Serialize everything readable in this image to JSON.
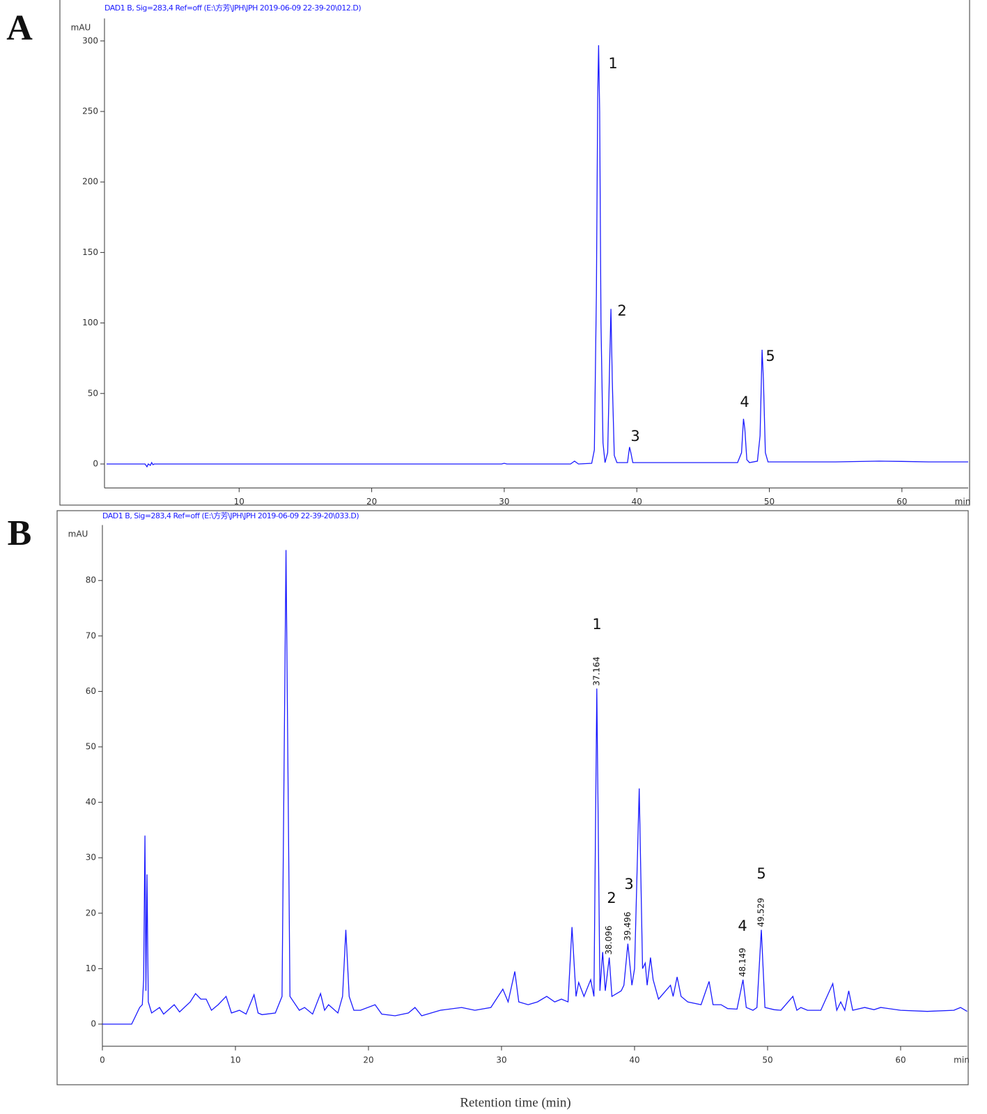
{
  "chart_data": [
    {
      "type": "line",
      "label": "A",
      "title": "DAD1 B, Sig=283,4 Ref=off (E:\\方芳\\JPH\\JPH 2019-06-09 22-39-20\\012.D)",
      "y_unit": "mAU",
      "x_unit": "min",
      "color": "#1a1aff",
      "xlim": [
        0,
        65
      ],
      "ylim": [
        -17,
        312
      ],
      "xticks": [
        10,
        20,
        30,
        40,
        50,
        60
      ],
      "yticks": [
        0,
        50,
        100,
        150,
        200,
        250,
        300
      ],
      "x": [
        0,
        2.9,
        3.05,
        3.15,
        3.3,
        3.4,
        3.5,
        3.6,
        10,
        20,
        29.8,
        30,
        30.2,
        35,
        35.3,
        35.6,
        36.6,
        36.8,
        36.95,
        37.05,
        37.12,
        37.2,
        37.3,
        37.45,
        37.6,
        37.8,
        37.95,
        38.05,
        38.15,
        38.3,
        38.5,
        39.3,
        39.45,
        39.55,
        39.7,
        47.6,
        47.9,
        48.05,
        48.15,
        48.3,
        48.5,
        49.1,
        49.3,
        49.45,
        49.55,
        49.7,
        49.9,
        55,
        58.3,
        60,
        62,
        65
      ],
      "values": [
        0,
        0,
        -2,
        0,
        -1,
        1,
        -0.5,
        0,
        0,
        0,
        0,
        0.5,
        0,
        0,
        2,
        0,
        0.5,
        10,
        120,
        260,
        297,
        250,
        100,
        15,
        1,
        8,
        70,
        110,
        60,
        6,
        1,
        1,
        12,
        8,
        1,
        1,
        8,
        32,
        25,
        3,
        1,
        2,
        20,
        81,
        60,
        8,
        1.5,
        1.5,
        2,
        1.8,
        1.5,
        1.5
      ],
      "annotations": [
        "1",
        "2",
        "3",
        "4",
        "5"
      ]
    },
    {
      "type": "line",
      "label": "B",
      "title": "DAD1 B, Sig=283,4 Ref=off (E:\\方芳\\JPH\\JPH 2019-06-09 22-39-20\\033.D)",
      "y_unit": "mAU",
      "x_unit": "min",
      "color": "#1a1aff",
      "xlim": [
        0,
        65
      ],
      "ylim": [
        -4,
        89
      ],
      "xticks": [
        0,
        10,
        20,
        30,
        40,
        50,
        60
      ],
      "yticks": [
        0,
        10,
        20,
        30,
        40,
        50,
        60,
        70,
        80
      ],
      "xlabel": "Retention time (min)",
      "x": [
        0,
        2.2,
        2.5,
        2.8,
        3.0,
        3.1,
        3.2,
        3.27,
        3.35,
        3.45,
        3.7,
        4.3,
        4.6,
        5.4,
        5.8,
        6.6,
        7.0,
        7.4,
        7.8,
        8.2,
        8.7,
        9.3,
        9.7,
        10.3,
        10.8,
        11.4,
        11.7,
        12.0,
        13.0,
        13.5,
        13.8,
        14.1,
        14.8,
        15.2,
        15.8,
        16.4,
        16.7,
        17.0,
        17.7,
        18.05,
        18.3,
        18.55,
        18.9,
        19.4,
        20.5,
        21.0,
        22.0,
        23.0,
        23.5,
        24.0,
        25.4,
        27.0,
        28.0,
        29.2,
        30.1,
        30.5,
        31.0,
        31.3,
        32.0,
        32.7,
        33.4,
        34.0,
        34.5,
        35.0,
        35.3,
        35.6,
        35.8,
        36.2,
        36.7,
        36.95,
        37.16,
        37.4,
        37.6,
        37.8,
        38.1,
        38.3,
        39.0,
        39.2,
        39.5,
        39.8,
        40.0,
        40.35,
        40.6,
        40.8,
        40.95,
        41.2,
        41.4,
        41.8,
        42.7,
        42.9,
        43.2,
        43.5,
        44.0,
        45.0,
        45.6,
        45.9,
        46.5,
        47.0,
        47.7,
        48.15,
        48.4,
        48.9,
        49.2,
        49.53,
        49.8,
        50.5,
        51.0,
        51.9,
        52.2,
        52.5,
        53.0,
        54.0,
        54.9,
        55.2,
        55.5,
        55.8,
        56.1,
        56.4,
        57.3,
        58.0,
        58.5,
        60.0,
        62.0,
        64.0,
        64.5,
        65.0
      ],
      "values": [
        0,
        0,
        1.5,
        3,
        3.5,
        8,
        34,
        6,
        27,
        4,
        2,
        3,
        1.8,
        3.5,
        2.2,
        4,
        5.5,
        4.5,
        4.5,
        2.5,
        3.5,
        5,
        2,
        2.5,
        1.8,
        5.3,
        2,
        1.7,
        2,
        5,
        85.5,
        5,
        2.5,
        3,
        1.8,
        5.5,
        2.5,
        3.5,
        2,
        5,
        17,
        5,
        2.5,
        2.5,
        3.5,
        1.8,
        1.5,
        2,
        3,
        1.5,
        2.5,
        3,
        2.5,
        3,
        6.3,
        4,
        9.5,
        4,
        3.5,
        4,
        5,
        4,
        4.5,
        4,
        17.5,
        5,
        7.5,
        5,
        8,
        5,
        60.5,
        6,
        13,
        6,
        12,
        5,
        6,
        7,
        14.5,
        7,
        10,
        42.5,
        10,
        11,
        7,
        12,
        8,
        4.5,
        7,
        5,
        8.5,
        5,
        4,
        3.5,
        7.7,
        3.5,
        3.5,
        2.8,
        2.7,
        8,
        3,
        2.5,
        3,
        17,
        3,
        2.6,
        2.5,
        5,
        2.5,
        3,
        2.5,
        2.5,
        7.3,
        2.5,
        4,
        2.5,
        6,
        2.5,
        3,
        2.6,
        3,
        2.5,
        2.3,
        2.5,
        3,
        2.3
      ],
      "annotations": [
        "1",
        "2",
        "3",
        "4",
        "5"
      ],
      "peak_labels": [
        37.164,
        38.096,
        39.496,
        48.149,
        49.529
      ]
    }
  ]
}
